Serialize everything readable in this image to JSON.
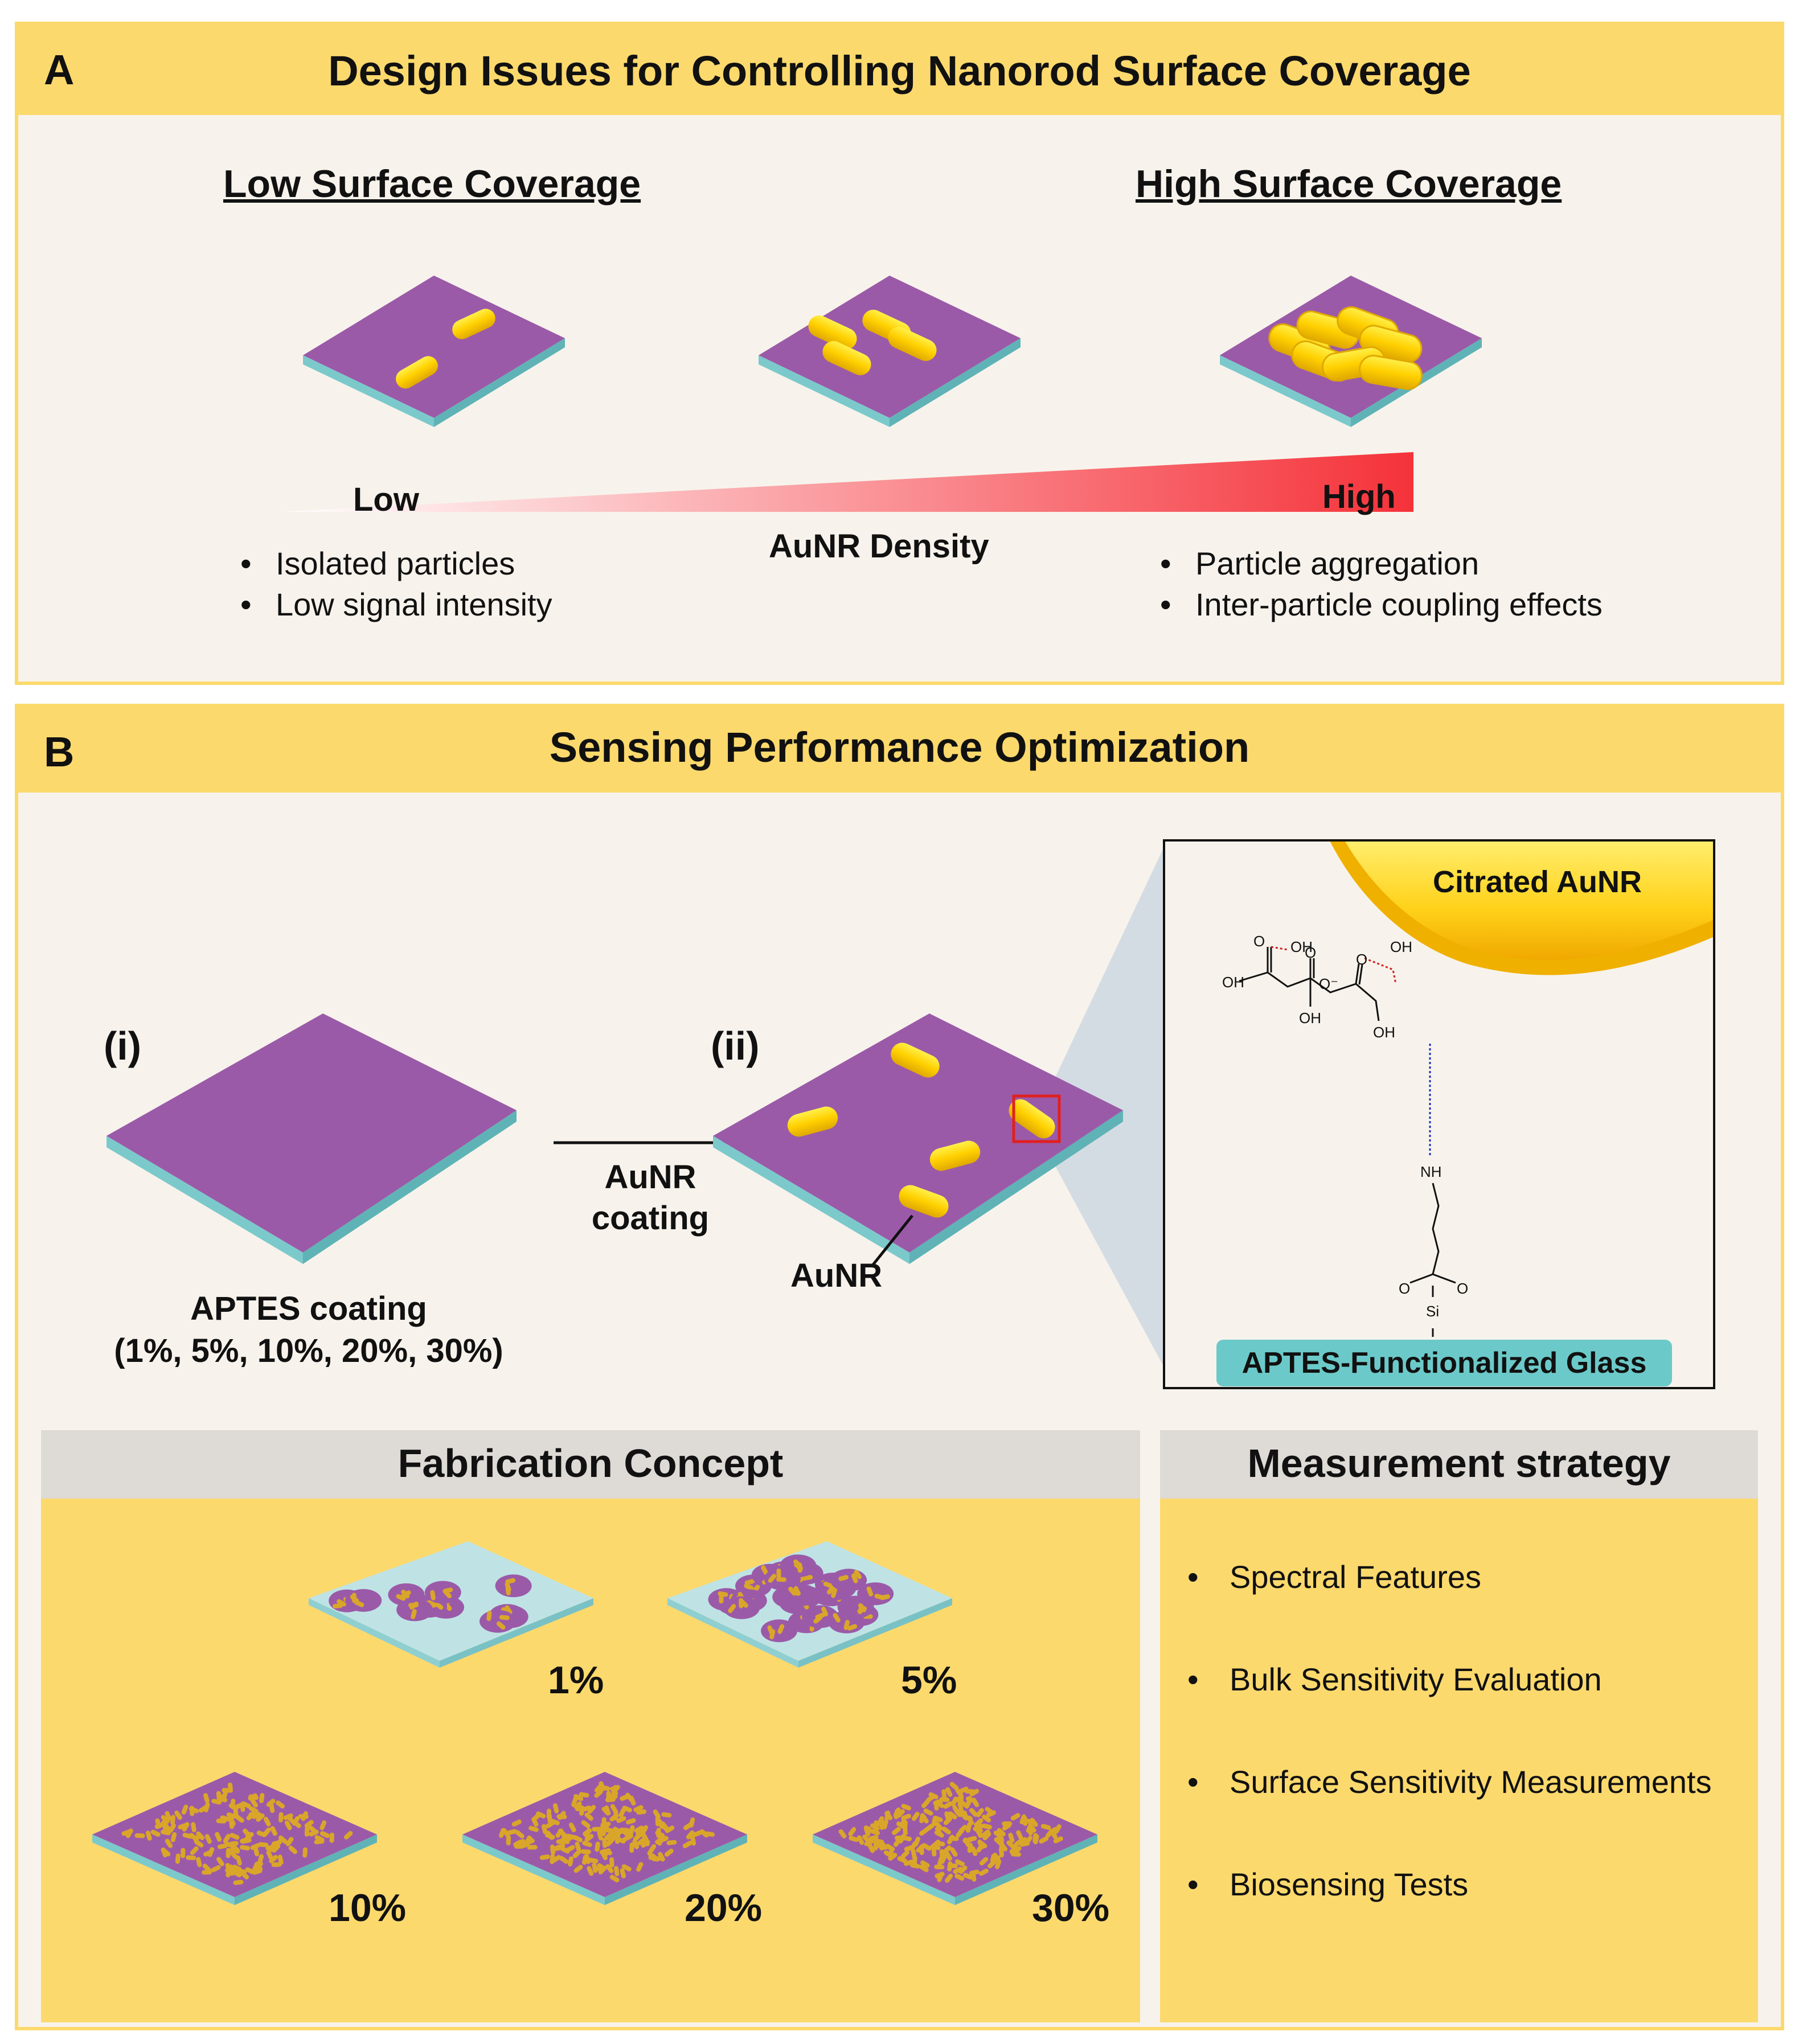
{
  "panel_a": {
    "letter": "A",
    "title": "Design Issues for Controlling Nanorod Surface Coverage",
    "low_heading": "Low Surface Coverage",
    "high_heading": "High Surface Coverage",
    "gradient": {
      "low_label": "Low",
      "high_label": "High",
      "axis_label": "AuNR Density"
    },
    "low_bullets": [
      "Isolated particles",
      "Low signal intensity"
    ],
    "high_bullets": [
      "Particle aggregation",
      "Inter-particle coupling effects"
    ]
  },
  "panel_b": {
    "letter": "B",
    "title": "Sensing Performance Optimization",
    "step_i": "(i)",
    "step_ii": "(ii)",
    "arrow_label": [
      "AuNR",
      "coating"
    ],
    "aptes_label": [
      "APTES coating",
      "(1%, 5%, 10%, 20%, 30%)"
    ],
    "aunr_pointer": "AuNR",
    "inset": {
      "particle_label": "Citrated AuNR",
      "glass_label": "APTES-Functionalized Glass",
      "chem": {
        "oh": "OH",
        "o": "O",
        "o_minus": "O⁻",
        "nh": "NH",
        "si": "Si"
      }
    },
    "fabrication": {
      "title": "Fabrication Concept",
      "concentrations": [
        "1%",
        "5%",
        "10%",
        "20%",
        "30%"
      ]
    },
    "measurement": {
      "title": "Measurement strategy",
      "items": [
        "Spectral Features",
        "Bulk Sensitivity Evaluation",
        "Surface Sensitivity Measurements",
        "Biosensing Tests"
      ]
    }
  },
  "colors": {
    "gold": "#fcd96d",
    "panel_bg": "#f7f3ec",
    "substrate": "#9b5aa8",
    "glass": "#7cc9cb",
    "nanorod": "#f5c800",
    "gradient_high": "#f5323a"
  }
}
